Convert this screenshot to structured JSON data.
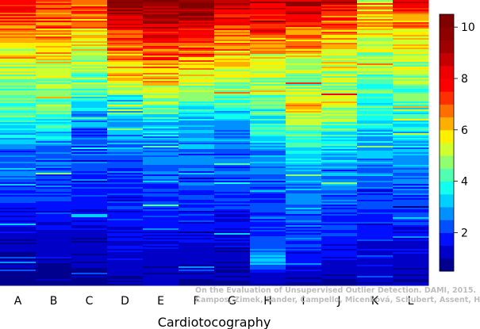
{
  "chart_data": {
    "type": "heatmap",
    "title": "",
    "xlabel": "Cardiotocography",
    "ylabel": "",
    "columns": [
      "A",
      "B",
      "C",
      "D",
      "E",
      "F",
      "G",
      "H",
      "I",
      "J",
      "K",
      "L"
    ],
    "colorbar": {
      "ticks": [
        2,
        4,
        6,
        8,
        10
      ],
      "range": [
        0.5,
        10.5
      ],
      "levels": 20,
      "colors": [
        "#00008f",
        "#0000c6",
        "#0010ff",
        "#0050ff",
        "#0090ff",
        "#00d0ff",
        "#10ffef",
        "#50ffaf",
        "#90ff6f",
        "#d0ff2f",
        "#ffef00",
        "#ffaf00",
        "#ff6f00",
        "#ff2f00",
        "#ff0000",
        "#ef0000",
        "#c60000",
        "#9f0000",
        "#8f0000",
        "#800000"
      ]
    },
    "column_profiles": {
      "A": [
        [
          0.0,
          7.4
        ],
        [
          0.03,
          7.9
        ],
        [
          0.07,
          6.9
        ],
        [
          0.1,
          6.5
        ],
        [
          0.14,
          6.0
        ],
        [
          0.18,
          5.7
        ],
        [
          0.22,
          5.3
        ],
        [
          0.26,
          5.0
        ],
        [
          0.3,
          4.8
        ],
        [
          0.34,
          4.4
        ],
        [
          0.4,
          4.2
        ],
        [
          0.44,
          3.8
        ],
        [
          0.48,
          3.0
        ],
        [
          0.54,
          2.4
        ],
        [
          0.6,
          2.2
        ],
        [
          0.66,
          2.0
        ],
        [
          0.72,
          1.8
        ],
        [
          0.78,
          1.5
        ],
        [
          0.84,
          1.2
        ],
        [
          0.9,
          1.0
        ],
        [
          1.0,
          0.8
        ]
      ],
      "B": [
        [
          0.0,
          7.4
        ],
        [
          0.03,
          7.6
        ],
        [
          0.07,
          6.8
        ],
        [
          0.11,
          6.6
        ],
        [
          0.15,
          6.0
        ],
        [
          0.2,
          5.7
        ],
        [
          0.26,
          5.2
        ],
        [
          0.32,
          4.9
        ],
        [
          0.36,
          4.6
        ],
        [
          0.4,
          4.2
        ],
        [
          0.45,
          3.6
        ],
        [
          0.5,
          2.8
        ],
        [
          0.56,
          2.4
        ],
        [
          0.62,
          2.2
        ],
        [
          0.68,
          2.0
        ],
        [
          0.74,
          1.8
        ],
        [
          0.8,
          1.5
        ],
        [
          0.86,
          1.3
        ],
        [
          0.92,
          1.0
        ],
        [
          1.0,
          0.8
        ]
      ],
      "C": [
        [
          0.0,
          7.6
        ],
        [
          0.04,
          7.2
        ],
        [
          0.08,
          6.6
        ],
        [
          0.12,
          6.0
        ],
        [
          0.16,
          5.5
        ],
        [
          0.2,
          5.1
        ],
        [
          0.24,
          4.8
        ],
        [
          0.3,
          4.4
        ],
        [
          0.34,
          4.0
        ],
        [
          0.38,
          3.4
        ],
        [
          0.42,
          2.8
        ],
        [
          0.48,
          2.3
        ],
        [
          0.54,
          2.2
        ],
        [
          0.6,
          2.0
        ],
        [
          0.66,
          1.9
        ],
        [
          0.72,
          1.7
        ],
        [
          0.78,
          1.5
        ],
        [
          0.84,
          1.3
        ],
        [
          0.9,
          1.1
        ],
        [
          1.0,
          0.9
        ]
      ],
      "D": [
        [
          0.0,
          10.2
        ],
        [
          0.03,
          9.5
        ],
        [
          0.06,
          8.8
        ],
        [
          0.1,
          7.8
        ],
        [
          0.14,
          7.2
        ],
        [
          0.18,
          6.7
        ],
        [
          0.22,
          6.3
        ],
        [
          0.26,
          5.9
        ],
        [
          0.3,
          5.4
        ],
        [
          0.33,
          4.7
        ],
        [
          0.36,
          4.0
        ],
        [
          0.4,
          3.4
        ],
        [
          0.44,
          3.0
        ],
        [
          0.5,
          2.6
        ],
        [
          0.56,
          2.3
        ],
        [
          0.62,
          2.1
        ],
        [
          0.7,
          1.9
        ],
        [
          0.78,
          1.7
        ],
        [
          0.86,
          1.4
        ],
        [
          1.0,
          1.0
        ]
      ],
      "E": [
        [
          0.0,
          9.6
        ],
        [
          0.06,
          9.4
        ],
        [
          0.1,
          8.6
        ],
        [
          0.14,
          7.8
        ],
        [
          0.18,
          7.0
        ],
        [
          0.22,
          6.6
        ],
        [
          0.26,
          6.2
        ],
        [
          0.3,
          5.6
        ],
        [
          0.34,
          4.8
        ],
        [
          0.38,
          4.2
        ],
        [
          0.42,
          3.6
        ],
        [
          0.46,
          3.2
        ],
        [
          0.5,
          2.8
        ],
        [
          0.56,
          2.5
        ],
        [
          0.62,
          2.3
        ],
        [
          0.7,
          2.0
        ],
        [
          0.78,
          1.8
        ],
        [
          0.86,
          1.4
        ],
        [
          0.92,
          1.2
        ],
        [
          1.0,
          1.0
        ]
      ],
      "F": [
        [
          0.0,
          10.0
        ],
        [
          0.05,
          9.6
        ],
        [
          0.1,
          8.2
        ],
        [
          0.14,
          7.4
        ],
        [
          0.18,
          6.8
        ],
        [
          0.22,
          6.4
        ],
        [
          0.26,
          5.9
        ],
        [
          0.3,
          5.0
        ],
        [
          0.34,
          4.4
        ],
        [
          0.38,
          3.8
        ],
        [
          0.42,
          3.2
        ],
        [
          0.48,
          2.8
        ],
        [
          0.54,
          2.5
        ],
        [
          0.6,
          2.3
        ],
        [
          0.66,
          2.1
        ],
        [
          0.72,
          1.9
        ],
        [
          0.78,
          1.7
        ],
        [
          0.86,
          1.4
        ],
        [
          0.92,
          1.2
        ],
        [
          1.0,
          1.0
        ]
      ],
      "G": [
        [
          0.0,
          8.6
        ],
        [
          0.04,
          8.2
        ],
        [
          0.08,
          7.6
        ],
        [
          0.12,
          7.0
        ],
        [
          0.16,
          6.4
        ],
        [
          0.2,
          5.9
        ],
        [
          0.24,
          5.5
        ],
        [
          0.28,
          5.1
        ],
        [
          0.32,
          4.6
        ],
        [
          0.36,
          4.0
        ],
        [
          0.4,
          3.4
        ],
        [
          0.46,
          2.9
        ],
        [
          0.52,
          2.5
        ],
        [
          0.58,
          2.3
        ],
        [
          0.64,
          2.1
        ],
        [
          0.7,
          1.9
        ],
        [
          0.78,
          1.6
        ],
        [
          0.86,
          1.3
        ],
        [
          0.92,
          1.1
        ],
        [
          1.0,
          0.9
        ]
      ],
      "H": [
        [
          0.0,
          8.8
        ],
        [
          0.04,
          8.0
        ],
        [
          0.08,
          7.2
        ],
        [
          0.12,
          6.6
        ],
        [
          0.16,
          6.0
        ],
        [
          0.2,
          5.6
        ],
        [
          0.24,
          5.2
        ],
        [
          0.28,
          4.8
        ],
        [
          0.34,
          4.4
        ],
        [
          0.4,
          4.0
        ],
        [
          0.46,
          3.5
        ],
        [
          0.52,
          3.0
        ],
        [
          0.58,
          2.6
        ],
        [
          0.64,
          2.3
        ],
        [
          0.7,
          2.1
        ],
        [
          0.76,
          2.0
        ],
        [
          0.82,
          1.8
        ],
        [
          0.88,
          2.6
        ],
        [
          0.92,
          3.2
        ],
        [
          0.96,
          1.5
        ],
        [
          1.0,
          1.0
        ]
      ],
      "I": [
        [
          0.0,
          9.2
        ],
        [
          0.04,
          8.4
        ],
        [
          0.08,
          7.4
        ],
        [
          0.12,
          6.8
        ],
        [
          0.16,
          6.2
        ],
        [
          0.2,
          5.6
        ],
        [
          0.26,
          5.2
        ],
        [
          0.3,
          4.8
        ],
        [
          0.34,
          5.4
        ],
        [
          0.38,
          6.2
        ],
        [
          0.42,
          5.0
        ],
        [
          0.48,
          4.0
        ],
        [
          0.54,
          3.4
        ],
        [
          0.6,
          3.0
        ],
        [
          0.66,
          2.6
        ],
        [
          0.72,
          2.4
        ],
        [
          0.78,
          2.2
        ],
        [
          0.84,
          2.0
        ],
        [
          0.92,
          1.6
        ],
        [
          1.0,
          1.0
        ]
      ],
      "J": [
        [
          0.0,
          8.2
        ],
        [
          0.04,
          7.6
        ],
        [
          0.08,
          7.0
        ],
        [
          0.12,
          6.4
        ],
        [
          0.16,
          5.8
        ],
        [
          0.2,
          5.5
        ],
        [
          0.24,
          5.2
        ],
        [
          0.3,
          5.0
        ],
        [
          0.36,
          5.4
        ],
        [
          0.4,
          4.8
        ],
        [
          0.46,
          4.0
        ],
        [
          0.52,
          3.4
        ],
        [
          0.58,
          3.0
        ],
        [
          0.64,
          2.6
        ],
        [
          0.7,
          2.3
        ],
        [
          0.76,
          2.1
        ],
        [
          0.82,
          1.9
        ],
        [
          0.88,
          1.6
        ],
        [
          0.94,
          1.3
        ],
        [
          1.0,
          1.0
        ]
      ],
      "K": [
        [
          0.0,
          5.6
        ],
        [
          0.04,
          5.9
        ],
        [
          0.08,
          6.0
        ],
        [
          0.12,
          5.6
        ],
        [
          0.16,
          5.2
        ],
        [
          0.2,
          4.9
        ],
        [
          0.26,
          4.6
        ],
        [
          0.32,
          4.3
        ],
        [
          0.38,
          4.0
        ],
        [
          0.44,
          3.6
        ],
        [
          0.5,
          3.2
        ],
        [
          0.56,
          2.8
        ],
        [
          0.62,
          2.4
        ],
        [
          0.68,
          2.1
        ],
        [
          0.74,
          1.9
        ],
        [
          0.8,
          1.7
        ],
        [
          0.86,
          1.5
        ],
        [
          0.92,
          1.3
        ],
        [
          0.96,
          1.2
        ],
        [
          1.0,
          1.0
        ]
      ],
      "L": [
        [
          0.0,
          7.8
        ],
        [
          0.04,
          7.2
        ],
        [
          0.08,
          6.6
        ],
        [
          0.12,
          6.0
        ],
        [
          0.16,
          5.6
        ],
        [
          0.2,
          5.2
        ],
        [
          0.26,
          4.8
        ],
        [
          0.32,
          4.4
        ],
        [
          0.38,
          4.0
        ],
        [
          0.44,
          3.6
        ],
        [
          0.5,
          3.2
        ],
        [
          0.56,
          2.8
        ],
        [
          0.62,
          2.5
        ],
        [
          0.68,
          2.2
        ],
        [
          0.74,
          2.0
        ],
        [
          0.8,
          1.8
        ],
        [
          0.86,
          1.5
        ],
        [
          0.92,
          1.3
        ],
        [
          0.96,
          1.1
        ],
        [
          1.0,
          0.9
        ]
      ]
    }
  },
  "credit": {
    "line1": "On the Evaluation of Unsupervised Outlier Detection. DAMI, 2015.",
    "line2": "Campos, Zimek, Sander, Campello, Micenková, Schubert, Assent, Houle"
  }
}
